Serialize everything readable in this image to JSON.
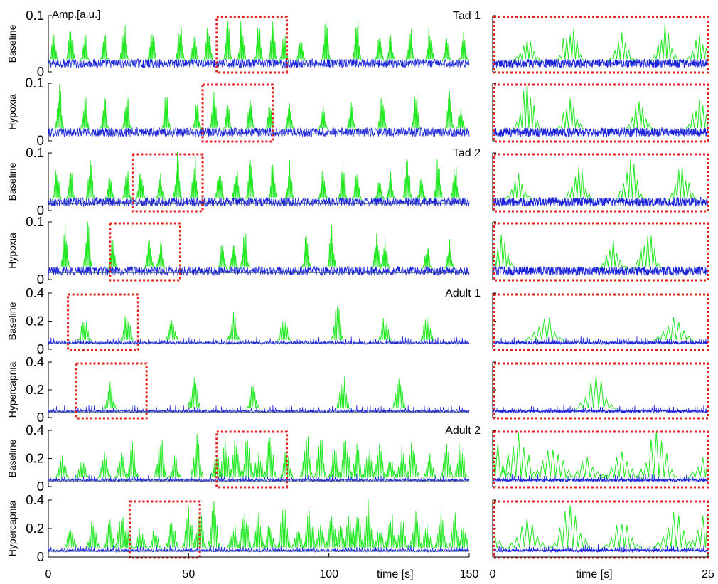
{
  "figure": {
    "amp_label": "Amp.[a.u.]",
    "xlabel": "time [s]",
    "colors": {
      "trace_blue": "#1a22d9",
      "trace_green": "#22e822",
      "baseline": "#2a4a70",
      "zoom_box": "#e3211c"
    }
  },
  "chart_data": [
    {
      "type": "line",
      "animal": "Tad 1",
      "condition": "Baseline",
      "ylim": [
        0,
        0.1
      ],
      "yticks": [
        "0.1",
        "0"
      ],
      "xlim": [
        0,
        150
      ],
      "burst_times": [
        2,
        8,
        13,
        20,
        27,
        37,
        47,
        52,
        57,
        64,
        69,
        75,
        80,
        84,
        90,
        99,
        110,
        118,
        122,
        129,
        136,
        142,
        148
      ],
      "zoom_window": [
        60,
        85
      ]
    },
    {
      "type": "line",
      "animal": "Tad 1",
      "condition": "Hypoxia",
      "ylim": [
        0,
        0.1
      ],
      "yticks": [
        "0.1",
        "0"
      ],
      "xlim": [
        0,
        150
      ],
      "burst_times": [
        4,
        13,
        20,
        28,
        42,
        53,
        59,
        64,
        72,
        79,
        86,
        98,
        108,
        119,
        131,
        143,
        147
      ],
      "zoom_window": [
        55,
        80
      ]
    },
    {
      "type": "line",
      "animal": "Tad 2",
      "condition": "Baseline",
      "ylim": [
        0,
        0.1
      ],
      "yticks": [
        "0.1",
        "0"
      ],
      "xlim": [
        0,
        150
      ],
      "burst_times": [
        3,
        8,
        15,
        22,
        28,
        33,
        40,
        46,
        52,
        61,
        67,
        72,
        80,
        86,
        98,
        105,
        110,
        118,
        122,
        128,
        133,
        139,
        145
      ],
      "zoom_window": [
        30,
        55
      ]
    },
    {
      "type": "line",
      "animal": "Tad 2",
      "condition": "Hypoxia",
      "ylim": [
        0,
        0.1
      ],
      "yticks": [
        "0.1",
        "0"
      ],
      "xlim": [
        0,
        150
      ],
      "burst_times": [
        6,
        14,
        23,
        36,
        40,
        62,
        66,
        70,
        92,
        101,
        117,
        120,
        135,
        143
      ],
      "zoom_window": [
        22,
        47
      ]
    },
    {
      "type": "line",
      "animal": "Adult 1",
      "condition": "Baseline",
      "ylim": [
        0,
        0.4
      ],
      "yticks": [
        "0.4",
        "0.2",
        "0"
      ],
      "xlim": [
        0,
        150
      ],
      "burst_times": [
        13,
        28,
        44,
        66,
        84,
        103,
        120,
        135
      ],
      "zoom_window": [
        7,
        32
      ]
    },
    {
      "type": "line",
      "animal": "Adult 1",
      "condition": "Hypercapnia",
      "ylim": [
        0,
        0.4
      ],
      "yticks": [
        "0.4",
        "0.2",
        "0"
      ],
      "xlim": [
        0,
        150
      ],
      "burst_times": [
        22,
        52,
        73,
        105,
        125
      ],
      "zoom_window": [
        10,
        35
      ]
    },
    {
      "type": "line",
      "animal": "Adult 2",
      "condition": "Baseline",
      "ylim": [
        0,
        0.4
      ],
      "yticks": [
        "0.4",
        "0.2",
        "0"
      ],
      "xlim": [
        0,
        150
      ],
      "burst_times": [
        5,
        12,
        20,
        26,
        30,
        40,
        45,
        53,
        60,
        63,
        67,
        71,
        75,
        79,
        85,
        92,
        97,
        102,
        106,
        110,
        114,
        118,
        122,
        126,
        130,
        136,
        142,
        147
      ],
      "zoom_window": [
        60,
        85
      ]
    },
    {
      "type": "line",
      "animal": "Adult 2",
      "condition": "Hypercapnia",
      "ylim": [
        0,
        0.4
      ],
      "yticks": [
        "0.4",
        "0.2",
        "0"
      ],
      "xlim": [
        0,
        150
      ],
      "xticks": [
        "0",
        "50",
        "100",
        "150"
      ],
      "burst_times": [
        8,
        16,
        22,
        26,
        28,
        33,
        38,
        44,
        50,
        54,
        59,
        66,
        70,
        75,
        79,
        84,
        89,
        93,
        97,
        101,
        104,
        107,
        110,
        114,
        118,
        122,
        126,
        131,
        135,
        140,
        145,
        148
      ],
      "zoom_window": [
        29,
        54
      ]
    }
  ],
  "zoom_axis": {
    "xlim": [
      0,
      25
    ],
    "xticks": [
      "0",
      "25"
    ]
  }
}
